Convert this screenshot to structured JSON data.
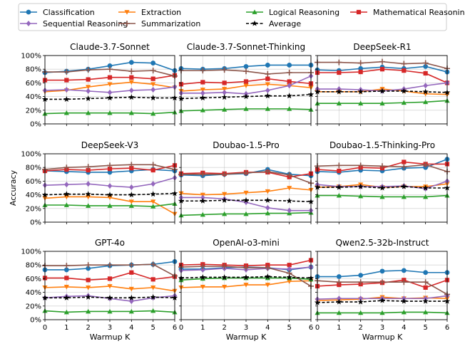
{
  "chart_data": {
    "type": "line",
    "xlabel": "Warmup K",
    "ylabel": "Accuracy",
    "x": [
      0,
      1,
      2,
      3,
      4,
      5,
      6
    ],
    "xlim": [
      0,
      6
    ],
    "ylim": [
      0,
      100
    ],
    "x_ticks": [
      "0",
      "1",
      "2",
      "3",
      "4",
      "5",
      "6"
    ],
    "y_ticks": [
      "0%",
      "20%",
      "40%",
      "60%",
      "80%",
      "100%"
    ],
    "grid": true,
    "legend": [
      {
        "name": "Classification",
        "color": "#1f77b4",
        "marker": "circle",
        "dashed": false
      },
      {
        "name": "Extraction",
        "color": "#ff7f0e",
        "marker": "triangle-down",
        "dashed": false
      },
      {
        "name": "Logical Reasoning",
        "color": "#2ca02c",
        "marker": "triangle-up",
        "dashed": false
      },
      {
        "name": "Mathematical Reasoning",
        "color": "#d62728",
        "marker": "square",
        "dashed": false
      },
      {
        "name": "Sequential Reasoning",
        "color": "#9467bd",
        "marker": "diamond",
        "dashed": false
      },
      {
        "name": "Summarization",
        "color": "#8c564b",
        "marker": "plus",
        "dashed": false
      },
      {
        "name": "Average",
        "color": "#000000",
        "marker": "star",
        "dashed": true
      }
    ],
    "panels": [
      {
        "title": "Claude-3.7-Sonnet",
        "series": {
          "Classification": [
            75,
            77,
            80,
            85,
            90,
            89,
            78
          ],
          "Extraction": [
            47,
            49,
            54,
            58,
            61,
            58,
            53
          ],
          "Logical Reasoning": [
            15,
            16,
            16,
            16,
            16,
            15,
            17
          ],
          "Mathematical Reasoning": [
            64,
            64,
            65,
            68,
            68,
            66,
            71
          ],
          "Sequential Reasoning": [
            49,
            50,
            48,
            46,
            49,
            50,
            54
          ],
          "Summarization": [
            76,
            76,
            79,
            80,
            77,
            78,
            70
          ],
          "Average": [
            36,
            36,
            37,
            38,
            39,
            38,
            38
          ]
        }
      },
      {
        "title": "Claude-3.7-Sonnet-Thinking",
        "series": {
          "Classification": [
            81,
            80,
            81,
            84,
            86,
            86,
            86
          ],
          "Extraction": [
            48,
            50,
            51,
            56,
            58,
            56,
            53
          ],
          "Logical Reasoning": [
            19,
            20,
            21,
            22,
            22,
            22,
            21
          ],
          "Mathematical Reasoning": [
            58,
            61,
            60,
            62,
            66,
            62,
            59
          ],
          "Sequential Reasoning": [
            45,
            45,
            46,
            44,
            49,
            56,
            70
          ],
          "Summarization": [
            78,
            78,
            79,
            77,
            73,
            75,
            75
          ],
          "Average": [
            37,
            38,
            39,
            40,
            41,
            41,
            43
          ]
        }
      },
      {
        "title": "DeepSeek-R1",
        "series": {
          "Classification": [
            79,
            78,
            81,
            83,
            81,
            84,
            76
          ],
          "Extraction": [
            47,
            47,
            47,
            51,
            48,
            44,
            43
          ],
          "Logical Reasoning": [
            30,
            30,
            30,
            30,
            31,
            32,
            34
          ],
          "Mathematical Reasoning": [
            75,
            75,
            76,
            80,
            78,
            74,
            60
          ],
          "Sequential Reasoning": [
            51,
            51,
            50,
            48,
            51,
            56,
            60
          ],
          "Summarization": [
            90,
            90,
            89,
            91,
            88,
            89,
            81
          ],
          "Average": [
            47,
            47,
            47,
            48,
            48,
            47,
            46
          ]
        }
      },
      {
        "title": "DeepSeek-V3",
        "series": {
          "Classification": [
            75,
            74,
            73,
            73,
            75,
            77,
            75
          ],
          "Extraction": [
            35,
            37,
            37,
            36,
            30,
            30,
            12
          ],
          "Logical Reasoning": [
            25,
            25,
            24,
            24,
            24,
            23,
            27
          ],
          "Mathematical Reasoning": [
            75,
            77,
            76,
            78,
            79,
            76,
            83
          ],
          "Sequential Reasoning": [
            54,
            55,
            56,
            53,
            51,
            56,
            65
          ],
          "Summarization": [
            77,
            80,
            81,
            83,
            84,
            84,
            77
          ],
          "Average": [
            40,
            41,
            41,
            40,
            40,
            41,
            42
          ]
        }
      },
      {
        "title": "Doubao-1.5-Pro",
        "series": {
          "Classification": [
            69,
            68,
            70,
            71,
            77,
            70,
            68
          ],
          "Extraction": [
            42,
            40,
            41,
            43,
            45,
            50,
            47
          ],
          "Logical Reasoning": [
            10,
            11,
            12,
            12,
            13,
            13,
            14
          ],
          "Mathematical Reasoning": [
            71,
            72,
            71,
            73,
            73,
            66,
            71
          ],
          "Sequential Reasoning": [
            36,
            36,
            34,
            29,
            21,
            17,
            17
          ],
          "Summarization": [
            70,
            70,
            70,
            72,
            74,
            69,
            57
          ],
          "Average": [
            31,
            31,
            32,
            32,
            32,
            31,
            30
          ]
        }
      },
      {
        "title": "Doubao-1.5-Thinking-Pro",
        "series": {
          "Classification": [
            74,
            73,
            76,
            75,
            79,
            80,
            92
          ],
          "Extraction": [
            51,
            52,
            55,
            51,
            52,
            52,
            56
          ],
          "Logical Reasoning": [
            39,
            39,
            38,
            37,
            37,
            37,
            39
          ],
          "Mathematical Reasoning": [
            77,
            75,
            80,
            79,
            88,
            85,
            85
          ],
          "Sequential Reasoning": [
            55,
            52,
            52,
            52,
            53,
            49,
            60
          ],
          "Summarization": [
            82,
            83,
            83,
            82,
            81,
            84,
            74
          ],
          "Average": [
            51,
            51,
            52,
            50,
            52,
            50,
            50
          ]
        }
      },
      {
        "title": "GPT-4o",
        "series": {
          "Classification": [
            73,
            73,
            75,
            79,
            80,
            81,
            85
          ],
          "Extraction": [
            47,
            48,
            47,
            49,
            45,
            47,
            42
          ],
          "Logical Reasoning": [
            13,
            11,
            12,
            12,
            12,
            13,
            11
          ],
          "Mathematical Reasoning": [
            61,
            61,
            58,
            60,
            69,
            59,
            63
          ],
          "Sequential Reasoning": [
            32,
            34,
            35,
            31,
            27,
            32,
            35
          ],
          "Summarization": [
            79,
            79,
            80,
            80,
            80,
            81,
            64
          ],
          "Average": [
            32,
            32,
            33,
            32,
            32,
            33,
            32
          ]
        }
      },
      {
        "title": "OpenAI-o3-mini",
        "series": {
          "Classification": [
            74,
            74,
            76,
            77,
            76,
            73,
            77
          ],
          "Extraction": [
            47,
            48,
            48,
            51,
            51,
            56,
            57
          ],
          "Logical Reasoning": [
            58,
            60,
            61,
            61,
            61,
            61,
            59
          ],
          "Mathematical Reasoning": [
            80,
            81,
            80,
            79,
            80,
            80,
            87
          ],
          "Sequential Reasoning": [
            72,
            73,
            75,
            73,
            75,
            74,
            77
          ],
          "Summarization": [
            77,
            78,
            78,
            76,
            76,
            68,
            49
          ],
          "Average": [
            61,
            62,
            62,
            62,
            63,
            62,
            61
          ]
        }
      },
      {
        "title": "Qwen2.5-32b-Instruct",
        "series": {
          "Classification": [
            63,
            63,
            65,
            71,
            72,
            69,
            69
          ],
          "Extraction": [
            28,
            29,
            30,
            33,
            31,
            32,
            31
          ],
          "Logical Reasoning": [
            10,
            10,
            10,
            10,
            11,
            11,
            10
          ],
          "Mathematical Reasoning": [
            49,
            51,
            52,
            54,
            58,
            47,
            58
          ],
          "Sequential Reasoning": [
            30,
            31,
            31,
            31,
            31,
            31,
            35
          ],
          "Summarization": [
            57,
            55,
            55,
            55,
            55,
            55,
            37
          ],
          "Average": [
            25,
            26,
            26,
            28,
            27,
            27,
            27
          ]
        }
      }
    ]
  }
}
